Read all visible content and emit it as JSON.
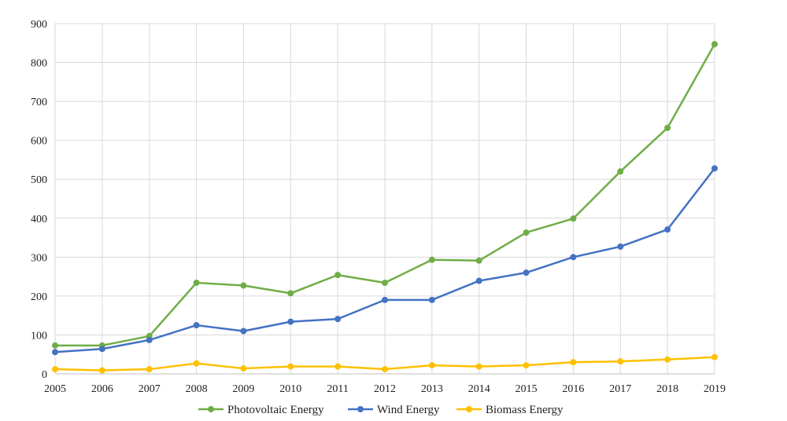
{
  "chart_data": {
    "type": "line",
    "title": "",
    "xlabel": "",
    "ylabel": "",
    "x": [
      "2005",
      "2006",
      "2007",
      "2008",
      "2009",
      "2010",
      "2011",
      "2012",
      "2013",
      "2014",
      "2015",
      "2016",
      "2017",
      "2018",
      "2019"
    ],
    "ylim": [
      0,
      900
    ],
    "yticks": [
      "0",
      "100",
      "200",
      "300",
      "400",
      "500",
      "600",
      "700",
      "800",
      "900"
    ],
    "grid": true,
    "legend_position": "bottom",
    "series": [
      {
        "name": "Photovoltaic Energy",
        "color": "#70ad47",
        "values": [
          73,
          73,
          97,
          234,
          227,
          207,
          254,
          234,
          293,
          291,
          363,
          399,
          520,
          632,
          847
        ]
      },
      {
        "name": "Wind Energy",
        "color": "#4472c4",
        "values": [
          56,
          64,
          87,
          125,
          110,
          134,
          141,
          190,
          190,
          239,
          260,
          300,
          327,
          371,
          528
        ]
      },
      {
        "name": "Biomass Energy",
        "color": "#ffc000",
        "values": [
          12,
          9,
          12,
          27,
          14,
          19,
          19,
          12,
          22,
          19,
          22,
          30,
          32,
          37,
          43
        ]
      }
    ]
  }
}
